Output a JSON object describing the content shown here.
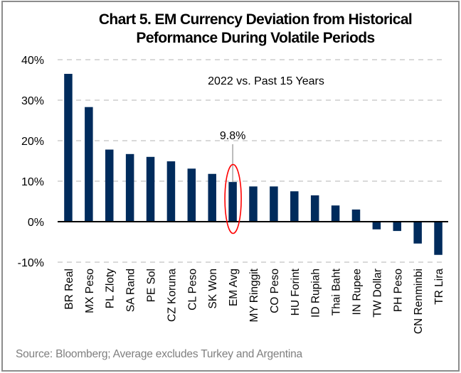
{
  "chart_data": {
    "type": "bar",
    "title": "Chart 5. EM Currency Deviation from Historical Peformance During Volatile Periods",
    "title_lines": [
      "Chart 5. EM Currency Deviation from Historical",
      "Peformance During Volatile Periods"
    ],
    "subtitle": "2022 vs. Past 15 Years",
    "xlabel": "",
    "ylabel": "",
    "ylim": [
      -10,
      40
    ],
    "yticks": [
      -10,
      0,
      10,
      20,
      30,
      40
    ],
    "ytick_labels": [
      "-10%",
      "0%",
      "10%",
      "20%",
      "30%",
      "40%"
    ],
    "grid": true,
    "categories": [
      "BR Real",
      "MX Peso",
      "PL Zloty",
      "SA Rand",
      "PE Sol",
      "CZ Koruna",
      "CL Peso",
      "SK Won",
      "EM Avg",
      "MY Ringgit",
      "CO Peso",
      "HU Forint",
      "ID Rupiah",
      "Thai Baht",
      "IN Rupee",
      "TW Dollar",
      "PH Peso",
      "CN Renminbi",
      "TR Lira"
    ],
    "series": [
      {
        "name": "Deviation (%)",
        "color": "#002b5c",
        "values": [
          36.5,
          28.3,
          17.8,
          16.7,
          16.0,
          14.9,
          13.1,
          11.8,
          9.8,
          8.7,
          8.7,
          7.5,
          6.5,
          4.0,
          3.0,
          -1.9,
          -2.3,
          -5.4,
          -8.2
        ]
      }
    ],
    "annotations": [
      {
        "category": "EM Avg",
        "text": "9.8%",
        "highlight": "red-ellipse",
        "color": "#ff0000"
      }
    ],
    "source": "Source: Bloomberg; Average excludes Turkey and Argentina"
  },
  "colors": {
    "bar": "#002b5c",
    "highlight": "#ff0000",
    "grid": "#d9d9d9",
    "source_text": "#7f7f7f",
    "border": "#8c8c8c"
  }
}
